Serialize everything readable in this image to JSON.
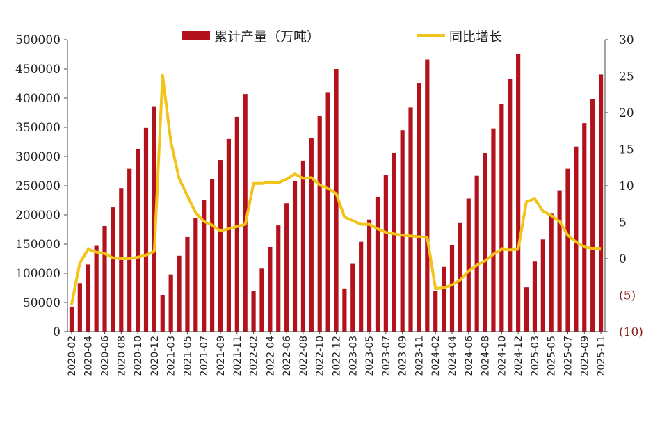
{
  "chart_data": {
    "type": "bar+line",
    "x": [
      "2020-02",
      "2020-03",
      "2020-04",
      "2020-05",
      "2020-06",
      "2020-07",
      "2020-08",
      "2020-09",
      "2020-10",
      "2020-11",
      "2020-12",
      "2021-02",
      "2021-03",
      "2021-04",
      "2021-05",
      "2021-06",
      "2021-07",
      "2021-08",
      "2021-09",
      "2021-10",
      "2021-11",
      "2021-12",
      "2022-02",
      "2022-03",
      "2022-04",
      "2022-05",
      "2022-06",
      "2022-07",
      "2022-08",
      "2022-09",
      "2022-10",
      "2022-11",
      "2022-12",
      "2023-02",
      "2023-03",
      "2023-04",
      "2023-05",
      "2023-06",
      "2023-07",
      "2023-08",
      "2023-09",
      "2023-10",
      "2023-11",
      "2023-12",
      "2024-02",
      "2024-03",
      "2024-04",
      "2024-05",
      "2024-06",
      "2024-07",
      "2024-08",
      "2024-09",
      "2024-10",
      "2024-11",
      "2024-12",
      "2025-02",
      "2025-03",
      "2025-04",
      "2025-05",
      "2025-06",
      "2025-07",
      "2025-08",
      "2025-09",
      "2025-10",
      "2025-11"
    ],
    "x_tick_labels": [
      "2020-02",
      "2020-04",
      "2020-06",
      "2020-08",
      "2020-10",
      "2020-12",
      "2021-03",
      "2021-05",
      "2021-07",
      "2021-09",
      "2021-11",
      "2022-02",
      "2022-04",
      "2022-06",
      "2022-08",
      "2022-10",
      "2022-12",
      "2023-03",
      "2023-05",
      "2023-07",
      "2023-09",
      "2023-11",
      "2024-02",
      "2024-04",
      "2024-06",
      "2024-08",
      "2024-10",
      "2024-12",
      "2025-03",
      "2025-05",
      "2025-07",
      "2025-09",
      "2025-11"
    ],
    "series": [
      {
        "name": "累计产量（万吨）",
        "kind": "bar",
        "axis": "left",
        "color": "#b3111b",
        "values": [
          43000,
          83000,
          115000,
          147000,
          181000,
          213000,
          245000,
          279000,
          313000,
          349000,
          385000,
          62000,
          98000,
          130000,
          162000,
          195000,
          226000,
          261000,
          294000,
          330000,
          368000,
          407000,
          69000,
          108000,
          145000,
          182000,
          220000,
          258000,
          293000,
          332000,
          369000,
          409000,
          450000,
          74000,
          116000,
          154000,
          192000,
          231000,
          268000,
          306000,
          345000,
          384000,
          425000,
          466000,
          70000,
          111000,
          148000,
          186000,
          228000,
          267000,
          306000,
          348000,
          390000,
          433000,
          476000,
          76000,
          120000,
          158000,
          202000,
          241000,
          279000,
          317000,
          357000,
          398000,
          440000
        ]
      },
      {
        "name": "同比增长",
        "kind": "line",
        "axis": "right",
        "color": "#f2c318",
        "values": [
          -6.3,
          -0.6,
          1.3,
          0.9,
          0.7,
          0.1,
          0.0,
          0.0,
          0.2,
          0.5,
          1.0,
          25.1,
          16.0,
          11.0,
          8.6,
          6.3,
          5.1,
          4.6,
          3.8,
          4.1,
          4.4,
          4.7,
          10.3,
          10.3,
          10.5,
          10.4,
          10.9,
          11.6,
          11.0,
          11.1,
          10.1,
          9.6,
          8.9,
          5.7,
          5.2,
          4.7,
          4.7,
          4.1,
          3.6,
          3.4,
          3.2,
          3.1,
          3.0,
          2.9,
          -4.1,
          -4.0,
          -3.6,
          -2.9,
          -1.7,
          -0.9,
          -0.3,
          0.6,
          1.3,
          1.2,
          1.3,
          7.8,
          8.2,
          6.5,
          5.9,
          5.1,
          3.2,
          2.3,
          1.6,
          1.4,
          1.3
        ]
      }
    ],
    "left_axis": {
      "ylim": [
        0,
        500000
      ],
      "ticks": [
        "0",
        "50000",
        "100000",
        "150000",
        "200000",
        "250000",
        "300000",
        "350000",
        "400000",
        "450000",
        "500000"
      ]
    },
    "right_axis": {
      "ylim": [
        -10,
        30
      ],
      "ticks": [
        "(10)",
        "(5)",
        "0",
        "5",
        "10",
        "15",
        "20",
        "25",
        "30"
      ]
    },
    "legend": {
      "placement": "top",
      "entries": [
        "累计产量（万吨）",
        "同比增长"
      ]
    },
    "grid": false
  }
}
